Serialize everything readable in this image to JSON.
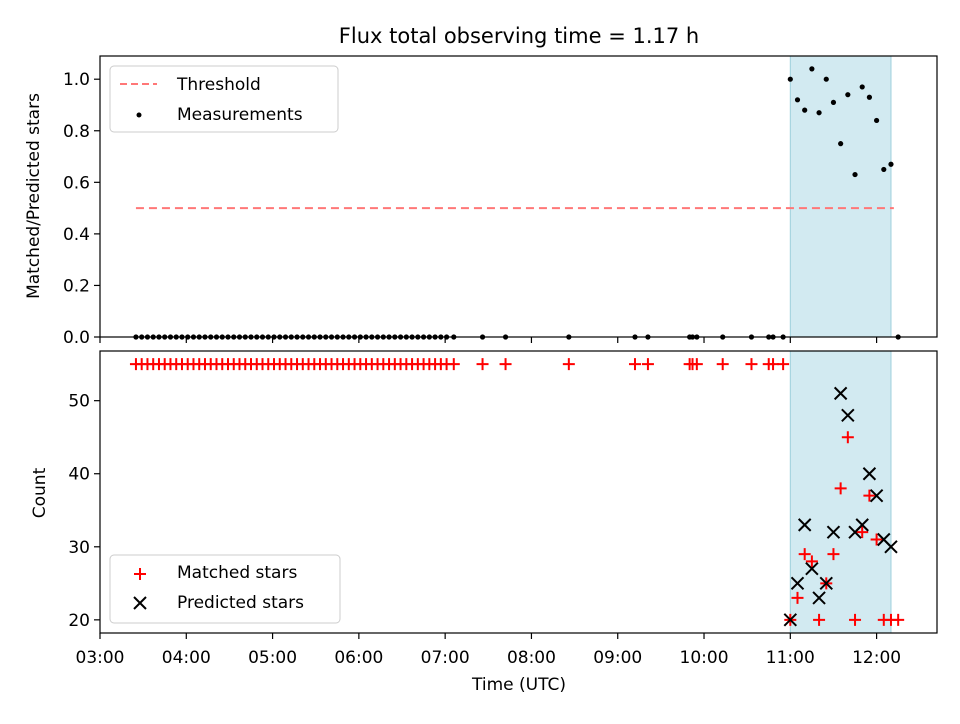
{
  "chart_data": {
    "type": "scatter",
    "title": "Flux total observing time = 1.17 h",
    "shaded_interval": {
      "x_start": "11:00",
      "x_end": "12:10",
      "color": "#add8e6"
    },
    "x_axis": {
      "label": "Time (UTC)",
      "range": [
        "03:00",
        "12:42"
      ],
      "ticks": [
        "03:00",
        "04:00",
        "05:00",
        "06:00",
        "07:00",
        "08:00",
        "09:00",
        "10:00",
        "11:00",
        "12:00"
      ]
    },
    "top": {
      "ylabel": "Matched/Predicted stars",
      "ylim": [
        0,
        1.09
      ],
      "yticks": [
        "0.0",
        "0.2",
        "0.4",
        "0.6",
        "0.8",
        "1.0"
      ],
      "legend": [
        "Threshold",
        "Measurements"
      ],
      "legend_position": "upper left",
      "threshold": {
        "y": 0.5,
        "x_range": [
          "03:25",
          "12:12"
        ],
        "color": "#ff7777"
      },
      "measurements": {
        "x": [
          "03:25",
          "03:29",
          "03:33",
          "03:37",
          "03:41",
          "03:45",
          "03:49",
          "03:53",
          "03:57",
          "04:01",
          "04:05",
          "04:09",
          "04:13",
          "04:17",
          "04:21",
          "04:25",
          "04:29",
          "04:33",
          "04:37",
          "04:41",
          "04:45",
          "04:49",
          "04:53",
          "04:57",
          "05:01",
          "05:05",
          "05:09",
          "05:13",
          "05:17",
          "05:21",
          "05:25",
          "05:29",
          "05:33",
          "05:37",
          "05:41",
          "05:45",
          "05:49",
          "05:53",
          "05:57",
          "06:01",
          "06:05",
          "06:09",
          "06:13",
          "06:17",
          "06:21",
          "06:25",
          "06:29",
          "06:33",
          "06:37",
          "06:41",
          "06:45",
          "06:49",
          "06:53",
          "06:57",
          "07:01",
          "07:06",
          "07:26",
          "07:42",
          "08:26",
          "09:12",
          "09:21",
          "09:50",
          "09:52",
          "09:55",
          "10:13",
          "10:33",
          "10:45",
          "10:48",
          "10:55",
          "11:00",
          "11:05",
          "11:10",
          "11:15",
          "11:20",
          "11:25",
          "11:30",
          "11:35",
          "11:40",
          "11:45",
          "11:50",
          "11:55",
          "12:00",
          "12:05",
          "12:10",
          "12:15"
        ],
        "y": [
          0,
          0,
          0,
          0,
          0,
          0,
          0,
          0,
          0,
          0,
          0,
          0,
          0,
          0,
          0,
          0,
          0,
          0,
          0,
          0,
          0,
          0,
          0,
          0,
          0,
          0,
          0,
          0,
          0,
          0,
          0,
          0,
          0,
          0,
          0,
          0,
          0,
          0,
          0,
          0,
          0,
          0,
          0,
          0,
          0,
          0,
          0,
          0,
          0,
          0,
          0,
          0,
          0,
          0,
          0,
          0,
          0,
          0,
          0,
          0,
          0,
          0,
          0,
          0,
          0,
          0,
          0,
          0,
          0,
          1.0,
          0.92,
          0.88,
          1.04,
          0.87,
          1.0,
          0.91,
          0.75,
          0.94,
          0.63,
          0.97,
          0.93,
          0.84,
          0.65,
          0.67,
          0
        ]
      }
    },
    "bottom": {
      "ylabel": "Count",
      "ylim": [
        18.2,
        56.8
      ],
      "yticks": [
        "20",
        "30",
        "40",
        "50"
      ],
      "legend": [
        "Matched stars",
        "Predicted stars"
      ],
      "legend_position": "lower left",
      "matched_stars": {
        "color": "#ff0000",
        "x": [
          "03:25",
          "03:29",
          "03:33",
          "03:37",
          "03:41",
          "03:45",
          "03:49",
          "03:53",
          "03:57",
          "04:01",
          "04:05",
          "04:09",
          "04:13",
          "04:17",
          "04:21",
          "04:25",
          "04:29",
          "04:33",
          "04:37",
          "04:41",
          "04:45",
          "04:49",
          "04:53",
          "04:57",
          "05:01",
          "05:05",
          "05:09",
          "05:13",
          "05:17",
          "05:21",
          "05:25",
          "05:29",
          "05:33",
          "05:37",
          "05:41",
          "05:45",
          "05:49",
          "05:53",
          "05:57",
          "06:01",
          "06:05",
          "06:09",
          "06:13",
          "06:17",
          "06:21",
          "06:25",
          "06:29",
          "06:33",
          "06:37",
          "06:41",
          "06:45",
          "06:49",
          "06:53",
          "06:57",
          "07:01",
          "07:06",
          "07:26",
          "07:42",
          "08:26",
          "09:12",
          "09:21",
          "09:50",
          "09:52",
          "09:55",
          "10:13",
          "10:33",
          "10:45",
          "10:48",
          "10:55",
          "11:00",
          "11:05",
          "11:10",
          "11:15",
          "11:20",
          "11:25",
          "11:30",
          "11:35",
          "11:40",
          "11:45",
          "11:50",
          "11:55",
          "12:00",
          "12:05",
          "12:10",
          "12:15"
        ],
        "y": [
          55,
          55,
          55,
          55,
          55,
          55,
          55,
          55,
          55,
          55,
          55,
          55,
          55,
          55,
          55,
          55,
          55,
          55,
          55,
          55,
          55,
          55,
          55,
          55,
          55,
          55,
          55,
          55,
          55,
          55,
          55,
          55,
          55,
          55,
          55,
          55,
          55,
          55,
          55,
          55,
          55,
          55,
          55,
          55,
          55,
          55,
          55,
          55,
          55,
          55,
          55,
          55,
          55,
          55,
          55,
          55,
          55,
          55,
          55,
          55,
          55,
          55,
          55,
          55,
          55,
          55,
          55,
          55,
          55,
          20,
          23,
          29,
          28,
          20,
          25,
          29,
          38,
          45,
          20,
          32,
          37,
          31,
          20,
          20,
          20
        ]
      },
      "predicted_stars": {
        "color": "#000000",
        "x": [
          "11:00",
          "11:05",
          "11:10",
          "11:15",
          "11:20",
          "11:25",
          "11:30",
          "11:35",
          "11:40",
          "11:45",
          "11:50",
          "11:55",
          "12:00",
          "12:05",
          "12:10"
        ],
        "y": [
          20,
          25,
          33,
          27,
          23,
          25,
          32,
          51,
          48,
          32,
          33,
          40,
          37,
          31,
          30
        ]
      }
    }
  }
}
